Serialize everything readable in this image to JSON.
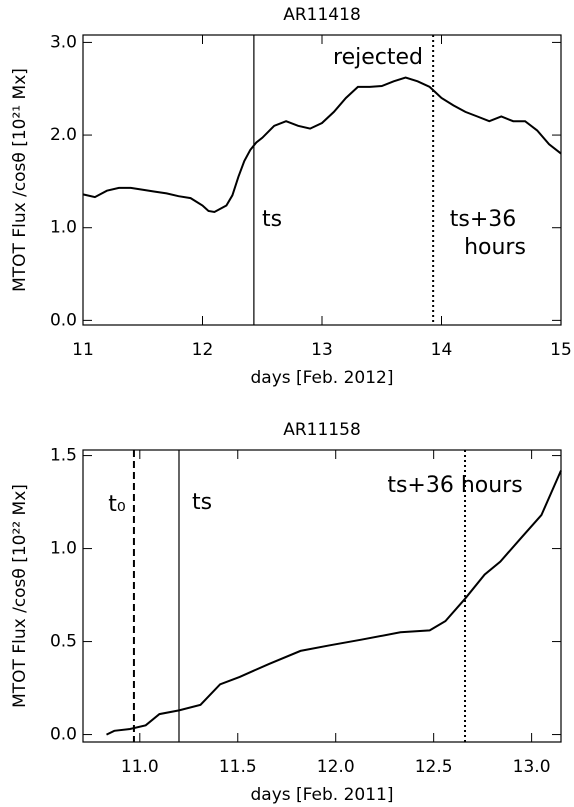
{
  "chart_data": [
    {
      "type": "line",
      "title": "AR11418",
      "x_label": "days [Feb. 2012]",
      "y_label": "MTOT Flux /cosθ [10²¹ Mx]",
      "x": [
        11.0,
        11.1,
        11.2,
        11.3,
        11.4,
        11.5,
        11.6,
        11.7,
        11.8,
        11.9,
        12.0,
        12.05,
        12.1,
        12.2,
        12.25,
        12.3,
        12.35,
        12.4,
        12.45,
        12.5,
        12.6,
        12.7,
        12.8,
        12.9,
        13.0,
        13.1,
        13.2,
        13.3,
        13.4,
        13.5,
        13.6,
        13.7,
        13.8,
        13.9,
        14.0,
        14.1,
        14.2,
        14.3,
        14.4,
        14.5,
        14.6,
        14.7,
        14.8,
        14.9,
        15.0
      ],
      "series": [
        {
          "color": "#000000",
          "values": [
            1.36,
            1.33,
            1.4,
            1.43,
            1.43,
            1.41,
            1.39,
            1.37,
            1.34,
            1.32,
            1.24,
            1.18,
            1.17,
            1.24,
            1.35,
            1.55,
            1.72,
            1.84,
            1.92,
            1.97,
            2.1,
            2.15,
            2.1,
            2.07,
            2.13,
            2.25,
            2.4,
            2.52,
            2.52,
            2.53,
            2.58,
            2.62,
            2.58,
            2.52,
            2.4,
            2.32,
            2.25,
            2.2,
            2.15,
            2.2,
            2.15,
            2.15,
            2.05,
            1.9,
            1.8
          ]
        }
      ],
      "vlines": [
        {
          "x": 12.43,
          "style": "solid"
        },
        {
          "x": 13.93,
          "style": "dotted"
        }
      ],
      "annotations": [
        "rejected",
        "ts",
        "ts+36",
        "hours"
      ],
      "xlim": [
        11,
        15
      ],
      "xticks": [
        11,
        12,
        13,
        14,
        15
      ],
      "ylim": [
        -0.05,
        3.08
      ],
      "yticks": [
        {
          "value": 0,
          "label": "0.0"
        },
        {
          "value": 1,
          "label": "1.0"
        },
        {
          "value": 2,
          "label": "2.0"
        },
        {
          "value": 3,
          "label": "3.0"
        }
      ]
    },
    {
      "type": "line",
      "title": "AR11158",
      "x_label": "days [Feb. 2011]",
      "y_label": "MTOT Flux /cosθ [10²² Mx]",
      "x": [
        10.83,
        10.87,
        10.95,
        11.03,
        11.1,
        11.2,
        11.31,
        11.41,
        11.51,
        11.66,
        11.82,
        11.97,
        12.13,
        12.33,
        12.48,
        12.56,
        12.66,
        12.76,
        12.84,
        12.94,
        13.05,
        13.15
      ],
      "series": [
        {
          "color": "#000000",
          "values": [
            0.0,
            0.02,
            0.03,
            0.05,
            0.11,
            0.13,
            0.16,
            0.27,
            0.31,
            0.38,
            0.45,
            0.48,
            0.51,
            0.55,
            0.56,
            0.61,
            0.73,
            0.86,
            0.93,
            1.05,
            1.18,
            1.42
          ]
        }
      ],
      "vlines": [
        {
          "x": 10.97,
          "style": "dashed"
        },
        {
          "x": 11.2,
          "style": "solid"
        },
        {
          "x": 12.66,
          "style": "dotted"
        }
      ],
      "annotations": [
        "t₀",
        "ts",
        "ts+36 hours"
      ],
      "xlim": [
        10.71,
        13.15
      ],
      "xticks": [
        {
          "value": 11,
          "label": "11.0"
        },
        11.5,
        {
          "value": 12,
          "label": "12.0"
        },
        12.5,
        {
          "value": 13,
          "label": "13.0"
        }
      ],
      "ylim": [
        -0.04,
        1.53
      ],
      "yticks": [
        {
          "value": 0,
          "label": "0.0"
        },
        0.5,
        {
          "value": 1,
          "label": "1.0"
        },
        1.5
      ]
    }
  ]
}
